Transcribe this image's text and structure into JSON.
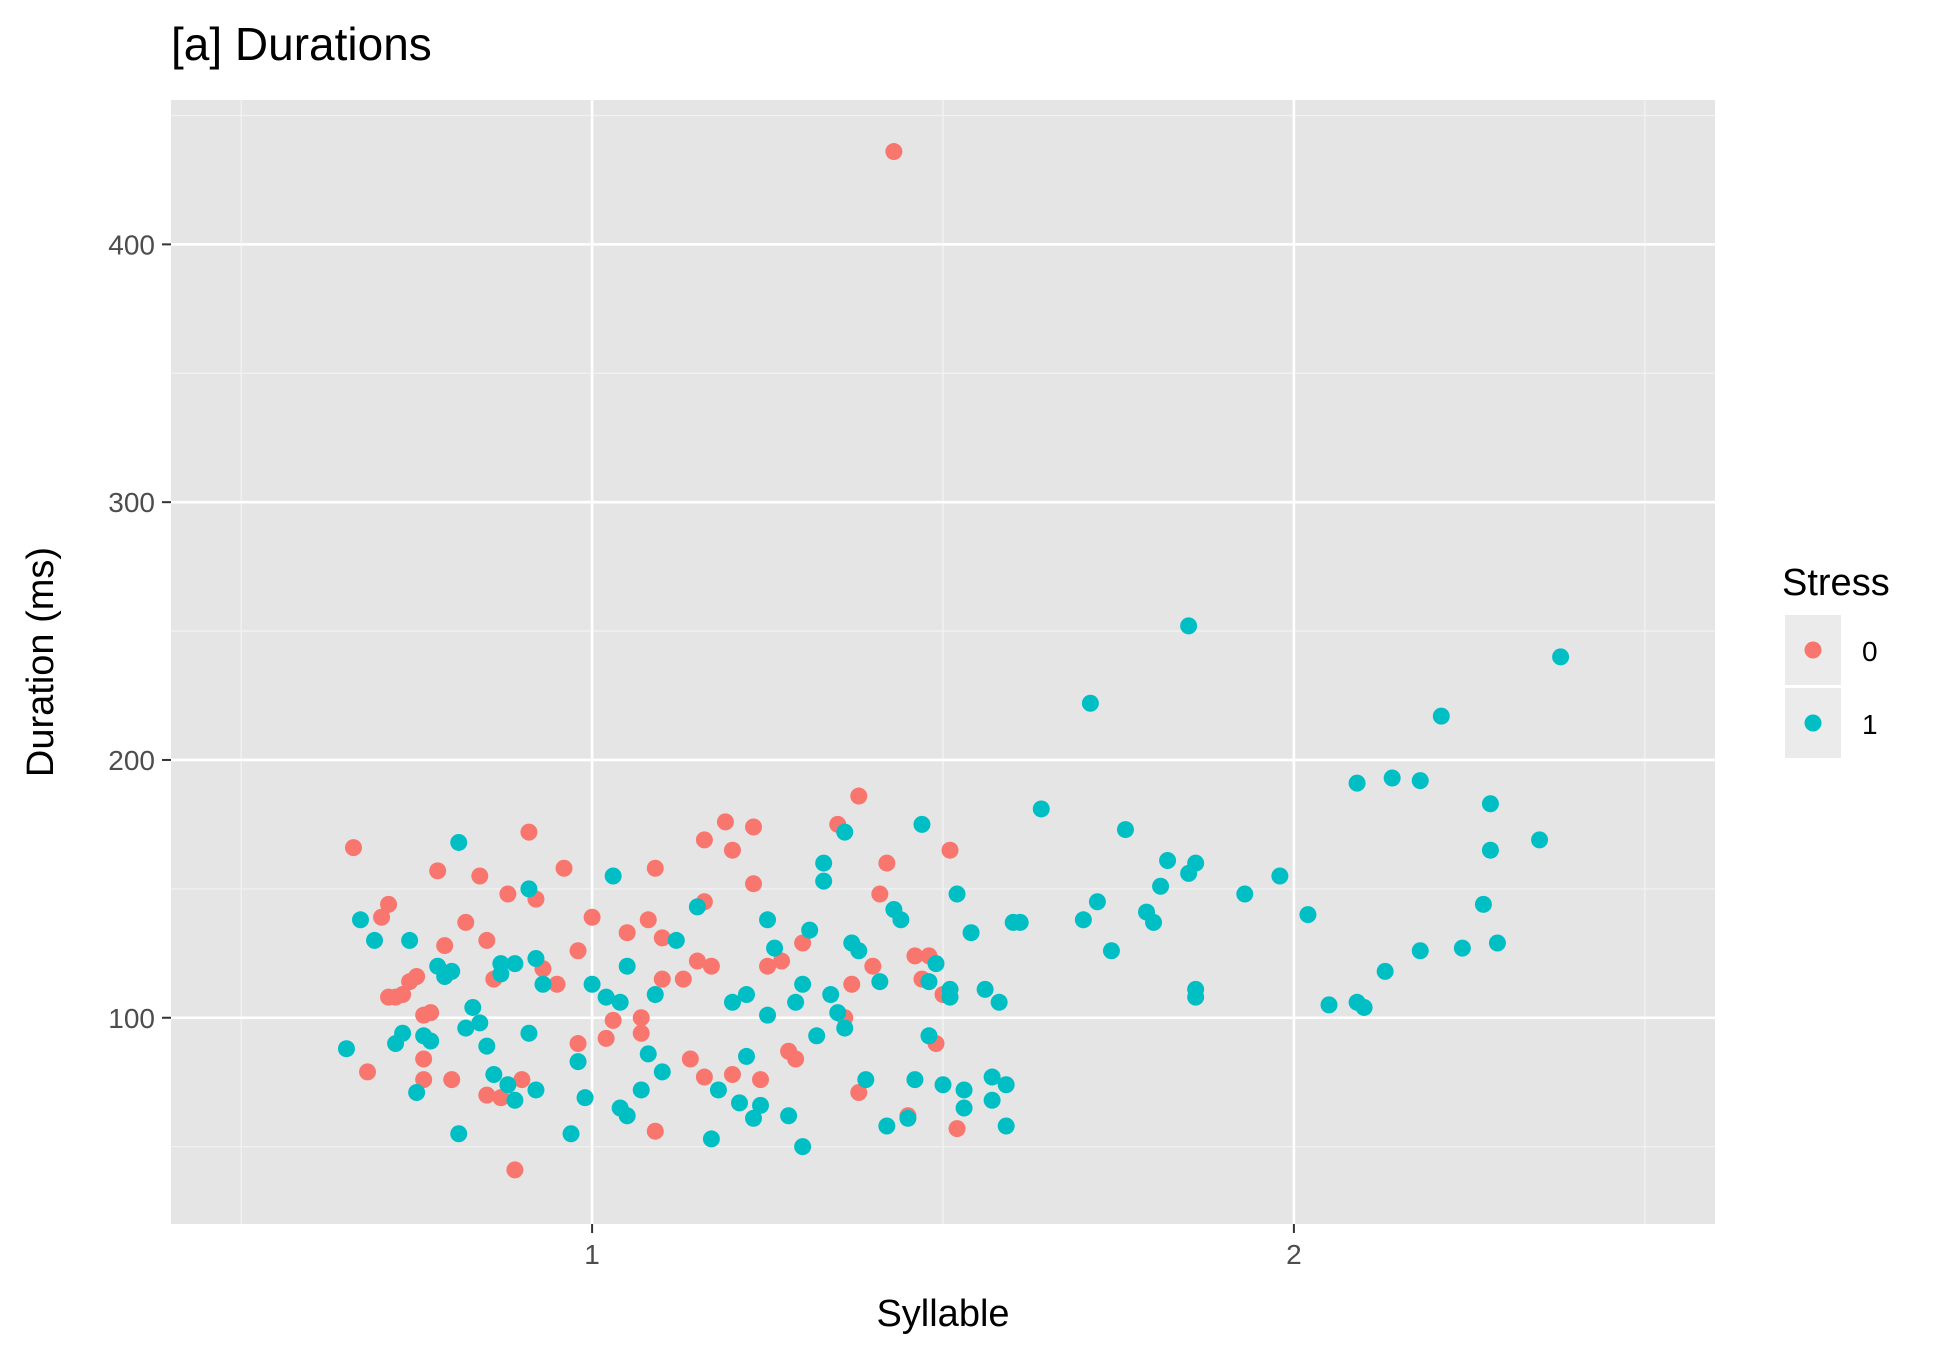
{
  "chart_data": {
    "type": "scatter",
    "title": "[a] Durations",
    "xlabel": "Syllable",
    "ylabel": "Duration (ms)",
    "xlim": [
      0.4,
      2.6
    ],
    "ylim": [
      20,
      456
    ],
    "x_ticks": [
      {
        "value": 1,
        "label": "1"
      },
      {
        "value": 2,
        "label": "2"
      }
    ],
    "y_ticks": [
      {
        "value": 100,
        "label": "100"
      },
      {
        "value": 200,
        "label": "200"
      },
      {
        "value": 300,
        "label": "300"
      },
      {
        "value": 400,
        "label": "400"
      }
    ],
    "grid": true,
    "legend": {
      "title": "Stress",
      "position": "right"
    },
    "series": [
      {
        "name": "0",
        "color": "#F8766D",
        "points": [
          {
            "x": 0.66,
            "y": 166
          },
          {
            "x": 0.68,
            "y": 79
          },
          {
            "x": 0.7,
            "y": 139
          },
          {
            "x": 0.71,
            "y": 144
          },
          {
            "x": 0.71,
            "y": 108
          },
          {
            "x": 0.72,
            "y": 108
          },
          {
            "x": 0.73,
            "y": 109
          },
          {
            "x": 0.74,
            "y": 114
          },
          {
            "x": 0.75,
            "y": 116
          },
          {
            "x": 0.76,
            "y": 101
          },
          {
            "x": 0.76,
            "y": 84
          },
          {
            "x": 0.76,
            "y": 76
          },
          {
            "x": 0.77,
            "y": 102
          },
          {
            "x": 0.78,
            "y": 157
          },
          {
            "x": 0.79,
            "y": 128
          },
          {
            "x": 0.8,
            "y": 76
          },
          {
            "x": 0.82,
            "y": 137
          },
          {
            "x": 0.84,
            "y": 155
          },
          {
            "x": 0.85,
            "y": 130
          },
          {
            "x": 0.85,
            "y": 70
          },
          {
            "x": 0.86,
            "y": 115
          },
          {
            "x": 0.87,
            "y": 69
          },
          {
            "x": 0.88,
            "y": 148
          },
          {
            "x": 0.89,
            "y": 41
          },
          {
            "x": 0.9,
            "y": 76
          },
          {
            "x": 0.91,
            "y": 172
          },
          {
            "x": 0.92,
            "y": 146
          },
          {
            "x": 0.93,
            "y": 119
          },
          {
            "x": 0.95,
            "y": 113
          },
          {
            "x": 0.96,
            "y": 158
          },
          {
            "x": 0.98,
            "y": 126
          },
          {
            "x": 0.98,
            "y": 90
          },
          {
            "x": 1.0,
            "y": 139
          },
          {
            "x": 1.02,
            "y": 92
          },
          {
            "x": 1.03,
            "y": 99
          },
          {
            "x": 1.05,
            "y": 133
          },
          {
            "x": 1.07,
            "y": 100
          },
          {
            "x": 1.07,
            "y": 94
          },
          {
            "x": 1.08,
            "y": 138
          },
          {
            "x": 1.09,
            "y": 56
          },
          {
            "x": 1.09,
            "y": 158
          },
          {
            "x": 1.1,
            "y": 115
          },
          {
            "x": 1.1,
            "y": 131
          },
          {
            "x": 1.13,
            "y": 115
          },
          {
            "x": 1.14,
            "y": 84
          },
          {
            "x": 1.15,
            "y": 122
          },
          {
            "x": 1.16,
            "y": 169
          },
          {
            "x": 1.16,
            "y": 145
          },
          {
            "x": 1.16,
            "y": 77
          },
          {
            "x": 1.17,
            "y": 120
          },
          {
            "x": 1.19,
            "y": 176
          },
          {
            "x": 1.2,
            "y": 165
          },
          {
            "x": 1.2,
            "y": 78
          },
          {
            "x": 1.23,
            "y": 174
          },
          {
            "x": 1.23,
            "y": 152
          },
          {
            "x": 1.24,
            "y": 76
          },
          {
            "x": 1.25,
            "y": 120
          },
          {
            "x": 1.27,
            "y": 122
          },
          {
            "x": 1.28,
            "y": 87
          },
          {
            "x": 1.29,
            "y": 84
          },
          {
            "x": 1.3,
            "y": 129
          },
          {
            "x": 1.35,
            "y": 175
          },
          {
            "x": 1.36,
            "y": 100
          },
          {
            "x": 1.37,
            "y": 113
          },
          {
            "x": 1.38,
            "y": 71
          },
          {
            "x": 1.38,
            "y": 186
          },
          {
            "x": 1.4,
            "y": 120
          },
          {
            "x": 1.41,
            "y": 148
          },
          {
            "x": 1.42,
            "y": 160
          },
          {
            "x": 1.43,
            "y": 436
          },
          {
            "x": 1.45,
            "y": 62
          },
          {
            "x": 1.46,
            "y": 124
          },
          {
            "x": 1.47,
            "y": 115
          },
          {
            "x": 1.48,
            "y": 124
          },
          {
            "x": 1.49,
            "y": 90
          },
          {
            "x": 1.5,
            "y": 109
          },
          {
            "x": 1.51,
            "y": 165
          },
          {
            "x": 1.52,
            "y": 57
          }
        ]
      },
      {
        "name": "1",
        "color": "#00BFC4",
        "points": [
          {
            "x": 0.65,
            "y": 88
          },
          {
            "x": 0.67,
            "y": 138
          },
          {
            "x": 0.69,
            "y": 130
          },
          {
            "x": 0.72,
            "y": 90
          },
          {
            "x": 0.73,
            "y": 94
          },
          {
            "x": 0.74,
            "y": 130
          },
          {
            "x": 0.75,
            "y": 71
          },
          {
            "x": 0.76,
            "y": 93
          },
          {
            "x": 0.77,
            "y": 91
          },
          {
            "x": 0.78,
            "y": 120
          },
          {
            "x": 0.79,
            "y": 116
          },
          {
            "x": 0.8,
            "y": 118
          },
          {
            "x": 0.81,
            "y": 168
          },
          {
            "x": 0.81,
            "y": 55
          },
          {
            "x": 0.82,
            "y": 96
          },
          {
            "x": 0.83,
            "y": 104
          },
          {
            "x": 0.84,
            "y": 98
          },
          {
            "x": 0.85,
            "y": 89
          },
          {
            "x": 0.86,
            "y": 78
          },
          {
            "x": 0.87,
            "y": 121
          },
          {
            "x": 0.87,
            "y": 117
          },
          {
            "x": 0.88,
            "y": 74
          },
          {
            "x": 0.89,
            "y": 121
          },
          {
            "x": 0.89,
            "y": 68
          },
          {
            "x": 0.91,
            "y": 150
          },
          {
            "x": 0.91,
            "y": 94
          },
          {
            "x": 0.92,
            "y": 123
          },
          {
            "x": 0.92,
            "y": 72
          },
          {
            "x": 0.93,
            "y": 113
          },
          {
            "x": 0.97,
            "y": 55
          },
          {
            "x": 0.98,
            "y": 83
          },
          {
            "x": 0.99,
            "y": 69
          },
          {
            "x": 1.0,
            "y": 113
          },
          {
            "x": 1.02,
            "y": 108
          },
          {
            "x": 1.03,
            "y": 155
          },
          {
            "x": 1.04,
            "y": 106
          },
          {
            "x": 1.04,
            "y": 65
          },
          {
            "x": 1.05,
            "y": 62
          },
          {
            "x": 1.05,
            "y": 120
          },
          {
            "x": 1.07,
            "y": 72
          },
          {
            "x": 1.08,
            "y": 86
          },
          {
            "x": 1.09,
            "y": 109
          },
          {
            "x": 1.1,
            "y": 79
          },
          {
            "x": 1.12,
            "y": 130
          },
          {
            "x": 1.15,
            "y": 143
          },
          {
            "x": 1.17,
            "y": 53
          },
          {
            "x": 1.18,
            "y": 72
          },
          {
            "x": 1.2,
            "y": 106
          },
          {
            "x": 1.21,
            "y": 67
          },
          {
            "x": 1.22,
            "y": 85
          },
          {
            "x": 1.22,
            "y": 109
          },
          {
            "x": 1.23,
            "y": 61
          },
          {
            "x": 1.24,
            "y": 66
          },
          {
            "x": 1.25,
            "y": 138
          },
          {
            "x": 1.25,
            "y": 101
          },
          {
            "x": 1.26,
            "y": 127
          },
          {
            "x": 1.28,
            "y": 62
          },
          {
            "x": 1.29,
            "y": 106
          },
          {
            "x": 1.3,
            "y": 50
          },
          {
            "x": 1.3,
            "y": 113
          },
          {
            "x": 1.31,
            "y": 134
          },
          {
            "x": 1.32,
            "y": 93
          },
          {
            "x": 1.33,
            "y": 153
          },
          {
            "x": 1.33,
            "y": 160
          },
          {
            "x": 1.34,
            "y": 109
          },
          {
            "x": 1.35,
            "y": 102
          },
          {
            "x": 1.36,
            "y": 172
          },
          {
            "x": 1.36,
            "y": 96
          },
          {
            "x": 1.37,
            "y": 129
          },
          {
            "x": 1.38,
            "y": 126
          },
          {
            "x": 1.39,
            "y": 76
          },
          {
            "x": 1.41,
            "y": 114
          },
          {
            "x": 1.42,
            "y": 58
          },
          {
            "x": 1.43,
            "y": 142
          },
          {
            "x": 1.44,
            "y": 138
          },
          {
            "x": 1.45,
            "y": 61
          },
          {
            "x": 1.46,
            "y": 76
          },
          {
            "x": 1.47,
            "y": 175
          },
          {
            "x": 1.48,
            "y": 114
          },
          {
            "x": 1.48,
            "y": 93
          },
          {
            "x": 1.49,
            "y": 121
          },
          {
            "x": 1.5,
            "y": 74
          },
          {
            "x": 1.51,
            "y": 111
          },
          {
            "x": 1.51,
            "y": 108
          },
          {
            "x": 1.52,
            "y": 148
          },
          {
            "x": 1.53,
            "y": 65
          },
          {
            "x": 1.53,
            "y": 72
          },
          {
            "x": 1.54,
            "y": 133
          },
          {
            "x": 1.56,
            "y": 111
          },
          {
            "x": 1.57,
            "y": 68
          },
          {
            "x": 1.57,
            "y": 77
          },
          {
            "x": 1.58,
            "y": 106
          },
          {
            "x": 1.59,
            "y": 74
          },
          {
            "x": 1.59,
            "y": 58
          },
          {
            "x": 1.6,
            "y": 137
          },
          {
            "x": 1.61,
            "y": 137
          },
          {
            "x": 1.64,
            "y": 181
          },
          {
            "x": 1.7,
            "y": 138
          },
          {
            "x": 1.71,
            "y": 222
          },
          {
            "x": 1.72,
            "y": 145
          },
          {
            "x": 1.74,
            "y": 126
          },
          {
            "x": 1.76,
            "y": 173
          },
          {
            "x": 1.79,
            "y": 141
          },
          {
            "x": 1.8,
            "y": 137
          },
          {
            "x": 1.81,
            "y": 151
          },
          {
            "x": 1.82,
            "y": 161
          },
          {
            "x": 1.85,
            "y": 252
          },
          {
            "x": 1.85,
            "y": 156
          },
          {
            "x": 1.86,
            "y": 160
          },
          {
            "x": 1.86,
            "y": 111
          },
          {
            "x": 1.86,
            "y": 108
          },
          {
            "x": 1.93,
            "y": 148
          },
          {
            "x": 1.98,
            "y": 155
          },
          {
            "x": 2.02,
            "y": 140
          },
          {
            "x": 2.05,
            "y": 105
          },
          {
            "x": 2.09,
            "y": 191
          },
          {
            "x": 2.09,
            "y": 106
          },
          {
            "x": 2.1,
            "y": 104
          },
          {
            "x": 2.13,
            "y": 118
          },
          {
            "x": 2.14,
            "y": 193
          },
          {
            "x": 2.18,
            "y": 192
          },
          {
            "x": 2.18,
            "y": 126
          },
          {
            "x": 2.21,
            "y": 217
          },
          {
            "x": 2.24,
            "y": 127
          },
          {
            "x": 2.27,
            "y": 144
          },
          {
            "x": 2.28,
            "y": 165
          },
          {
            "x": 2.28,
            "y": 183
          },
          {
            "x": 2.29,
            "y": 129
          },
          {
            "x": 2.35,
            "y": 169
          },
          {
            "x": 2.38,
            "y": 240
          }
        ]
      }
    ]
  }
}
